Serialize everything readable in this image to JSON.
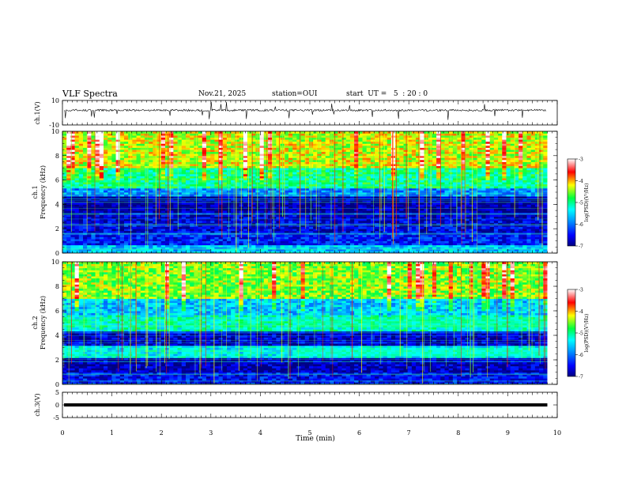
{
  "header": {
    "title": "VLF Spectra",
    "date": "Nov.21, 2025",
    "station": "station=OUI",
    "start": "start  UT =   5  : 20 : 0"
  },
  "chart_data": [
    {
      "type": "line",
      "id": "ch1-waveform",
      "ylabel": "ch.1(V)",
      "ylim": [
        -10,
        10
      ],
      "yticks": [
        10,
        -10
      ],
      "description_values": "noisy waveform around +2 V with occasional negative spikes",
      "baseline": 2,
      "xlim": [
        0,
        9.8
      ]
    },
    {
      "type": "heatmap",
      "id": "ch1-spectrogram",
      "ylabel": "Frequency  (kHz)",
      "ylabel_channel": "ch.1",
      "ylim": [
        0,
        10
      ],
      "yticks": [
        0,
        2,
        4,
        6,
        8,
        10
      ],
      "colorbar": {
        "label": "log(PSD)(V²/Hz)",
        "ticks": [
          -3,
          -4,
          -5,
          -6,
          -7
        ],
        "range": [
          -7,
          -3
        ]
      },
      "bands_khz": [
        {
          "from": 0,
          "to": 0.6,
          "level": -5.6
        },
        {
          "from": 0.6,
          "to": 1.6,
          "level": -6.4
        },
        {
          "from": 1.6,
          "to": 2.6,
          "level": -6.6
        },
        {
          "from": 2.6,
          "to": 3.4,
          "level": -6.7
        },
        {
          "from": 3.4,
          "to": 4.6,
          "level": -6.9
        },
        {
          "from": 4.6,
          "to": 5.4,
          "level": -5.9
        },
        {
          "from": 5.4,
          "to": 7.0,
          "level": -5.0
        },
        {
          "from": 7.0,
          "to": 10.0,
          "level": -4.3
        }
      ]
    },
    {
      "type": "heatmap",
      "id": "ch2-spectrogram",
      "ylabel": "Frequency  (kHz)",
      "ylabel_channel": "ch.2",
      "ylim": [
        0,
        10
      ],
      "yticks": [
        0,
        2,
        4,
        6,
        8,
        10
      ],
      "colorbar": {
        "label": "log(PSD)(V²/Hz)",
        "ticks": [
          -3,
          -4,
          -5,
          -6,
          -7
        ],
        "range": [
          -7,
          -3
        ]
      },
      "bands_khz": [
        {
          "from": 0,
          "to": 1.0,
          "level": -6.5
        },
        {
          "from": 1.0,
          "to": 2.2,
          "level": -6.8
        },
        {
          "from": 2.2,
          "to": 3.2,
          "level": -5.4
        },
        {
          "from": 3.2,
          "to": 4.4,
          "level": -6.7
        },
        {
          "from": 4.4,
          "to": 5.6,
          "level": -5.2
        },
        {
          "from": 5.6,
          "to": 7.0,
          "level": -5.6
        },
        {
          "from": 7.0,
          "to": 10.0,
          "level": -4.5
        }
      ],
      "emissions_khz": [
        2.6,
        5.0
      ]
    },
    {
      "type": "line",
      "id": "ch3-waveform",
      "ylabel": "ch.3(V)",
      "ylim": [
        -5,
        5
      ],
      "yticks": [
        5,
        0,
        -5
      ],
      "baseline": 0,
      "xlim": [
        0,
        9.8
      ]
    }
  ],
  "x_axis": {
    "label": "Time  (min)",
    "xlim": [
      0,
      10
    ],
    "ticks": [
      "0",
      "1",
      "2",
      "3",
      "4",
      "5",
      "6",
      "7",
      "8",
      "9",
      "10"
    ]
  }
}
